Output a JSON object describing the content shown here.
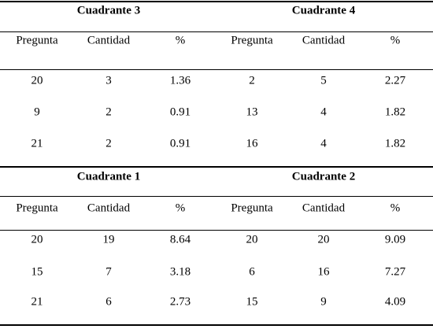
{
  "column_headers": [
    "Pregunta",
    "Cantidad",
    "%"
  ],
  "blocks": [
    {
      "left": {
        "title": "Cuadrante 3",
        "rows": [
          [
            "20",
            "3",
            "1.36"
          ],
          [
            "9",
            "2",
            "0.91"
          ],
          [
            "21",
            "2",
            "0.91"
          ]
        ]
      },
      "right": {
        "title": "Cuadrante 4",
        "rows": [
          [
            "2",
            "5",
            "2.27"
          ],
          [
            "13",
            "4",
            "1.82"
          ],
          [
            "16",
            "4",
            "1.82"
          ]
        ]
      }
    },
    {
      "left": {
        "title": "Cuadrante 1",
        "rows": [
          [
            "20",
            "19",
            "8.64"
          ],
          [
            "15",
            "7",
            "3.18"
          ],
          [
            "21",
            "6",
            "2.73"
          ]
        ]
      },
      "right": {
        "title": "Cuadrante 2",
        "rows": [
          [
            "20",
            "20",
            "9.09"
          ],
          [
            "6",
            "16",
            "7.27"
          ],
          [
            "15",
            "9",
            "4.09"
          ]
        ]
      }
    }
  ]
}
